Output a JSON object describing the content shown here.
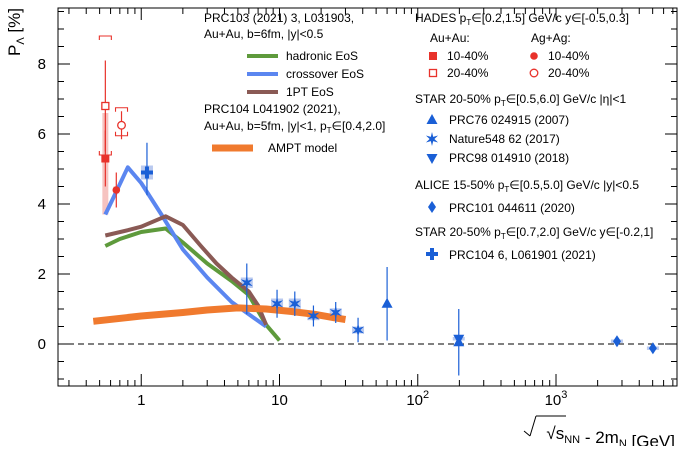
{
  "chart_data": {
    "type": "scatter",
    "xlabel": "√s_NN - 2m_N [GeV]",
    "ylabel": "P_Λ [%]",
    "x_scale": "log",
    "xlim": [
      0.25,
      7500
    ],
    "ylim": [
      -1.2,
      9.6
    ],
    "xticks": [
      {
        "value": 1,
        "label": "1"
      },
      {
        "value": 10,
        "label": "10"
      },
      {
        "value": 100,
        "label": "10²"
      },
      {
        "value": 1000,
        "label": "10³"
      }
    ],
    "yticks": [
      {
        "value": 0,
        "label": "0"
      },
      {
        "value": 2,
        "label": "2"
      },
      {
        "value": 4,
        "label": "4"
      },
      {
        "value": 6,
        "label": "6"
      },
      {
        "value": 8,
        "label": "8"
      }
    ],
    "zero_line": true,
    "model_block_1": {
      "header": "PRC103 (2021) 3, L031903,",
      "line2": "Au+Au, b=6fm, |y|<0.5",
      "entries": [
        "hadronic EoS",
        "crossover EoS",
        "1PT EoS"
      ]
    },
    "model_block_2": {
      "header": "PRC104 L041902 (2021),",
      "line2": "Au+Au, b=5fm, |y|<1, p_T∈[0.4,2.0]",
      "entries": [
        "AMPT model"
      ]
    },
    "hades_block": {
      "header": "HADES p_T∈[0.2,1.5] GeV/c y∈[-0.5,0.3]",
      "col1": "Au+Au:",
      "col2": "Ag+Ag:",
      "entries": [
        "10-40%",
        "20-40%",
        "10-40%",
        "20-40%"
      ]
    },
    "star1_block": {
      "header": "STAR 20-50% p_T∈[0.5,6.0] GeV/c |η|<1",
      "entries": [
        "PRC76 024915 (2007)",
        "Nature548 62 (2017)",
        "PRC98 014910 (2018)"
      ]
    },
    "alice_block": {
      "header": "ALICE 15-50% p_T∈[0.5,5.0] GeV/c |y|<0.5",
      "entries": [
        "PRC101 044611 (2020)"
      ]
    },
    "star2_block": {
      "header": "STAR 20-50% p_T∈[0.7,2.0] GeV/c y∈[-0.2,1]",
      "entries": [
        "PRC104 6, L061901 (2021)"
      ]
    },
    "colors": {
      "hades": "#e8322b",
      "star": "#1a5fd6",
      "star_sys": "#b9c9ef",
      "hadronic": "#5e9a3c",
      "crossover": "#5b86f0",
      "onept": "#8a5a55",
      "ampt": "#f07a2e"
    },
    "series": [
      {
        "name": "hadronic EoS",
        "kind": "line",
        "points": [
          [
            0.55,
            2.8
          ],
          [
            0.7,
            3.0
          ],
          [
            1.0,
            3.2
          ],
          [
            1.5,
            3.3
          ],
          [
            2.0,
            2.9
          ],
          [
            3.0,
            2.3
          ],
          [
            4.5,
            1.8
          ],
          [
            6.0,
            1.4
          ],
          [
            8.0,
            0.55
          ],
          [
            10.0,
            0.1
          ]
        ]
      },
      {
        "name": "crossover EoS",
        "kind": "line",
        "points": [
          [
            0.55,
            3.7
          ],
          [
            0.65,
            4.3
          ],
          [
            0.8,
            5.05
          ],
          [
            1.0,
            4.6
          ],
          [
            1.4,
            3.7
          ],
          [
            2.0,
            2.7
          ],
          [
            3.0,
            1.9
          ],
          [
            4.5,
            1.2
          ],
          [
            6.0,
            0.85
          ],
          [
            8.0,
            0.5
          ]
        ]
      },
      {
        "name": "1PT EoS",
        "kind": "line",
        "points": [
          [
            0.55,
            3.1
          ],
          [
            0.8,
            3.25
          ],
          [
            1.0,
            3.35
          ],
          [
            1.5,
            3.65
          ],
          [
            2.0,
            3.4
          ],
          [
            2.7,
            2.8
          ],
          [
            3.5,
            2.3
          ],
          [
            4.5,
            1.9
          ],
          [
            6.0,
            1.5
          ],
          [
            7.0,
            1.1
          ],
          [
            8.0,
            0.55
          ]
        ]
      },
      {
        "name": "AMPT model",
        "kind": "band",
        "points": [
          [
            0.45,
            0.65
          ],
          [
            1.0,
            0.8
          ],
          [
            2.0,
            0.9
          ],
          [
            3.0,
            0.97
          ],
          [
            5.0,
            1.03
          ],
          [
            8.0,
            1.0
          ],
          [
            12.0,
            0.93
          ],
          [
            18.0,
            0.85
          ],
          [
            25.0,
            0.75
          ],
          [
            30.0,
            0.7
          ]
        ]
      },
      {
        "name": "HADES Au+Au 10-40%",
        "kind": "point",
        "marker": "square-filled",
        "points": [
          {
            "x": 0.55,
            "y": 5.3,
            "err_lo": 0.8,
            "err_hi": 0.8,
            "sys_lo": 1.6,
            "sys_hi": 1.3
          }
        ]
      },
      {
        "name": "HADES Au+Au 20-40%",
        "kind": "point",
        "marker": "square-open",
        "points": [
          {
            "x": 0.55,
            "y": 6.8,
            "err_lo": 1.3,
            "err_hi": 1.3,
            "sys_lo": 1.4,
            "sys_hi": 2.0
          }
        ]
      },
      {
        "name": "HADES Ag+Ag 10-40%",
        "kind": "point",
        "marker": "circle-filled",
        "points": [
          {
            "x": 0.66,
            "y": 4.4,
            "err_lo": 0.5,
            "err_hi": 0.5,
            "sys_lo": 0.1,
            "sys_hi": 0.1
          }
        ]
      },
      {
        "name": "HADES Ag+Ag 20-40%",
        "kind": "point",
        "marker": "circle-open",
        "points": [
          {
            "x": 0.72,
            "y": 6.25,
            "err_lo": 0.4,
            "err_hi": 0.4,
            "sys_lo": 0.3,
            "sys_hi": 0.5
          }
        ]
      },
      {
        "name": "STAR PRC104 6, L061901 (2021)",
        "kind": "point",
        "marker": "cross",
        "points": [
          {
            "x": 1.1,
            "y": 4.9,
            "err_lo": 0.65,
            "err_hi": 0.85,
            "sys_lo": 0.2,
            "sys_hi": 0.2
          }
        ]
      },
      {
        "name": "STAR Nature548 62 (2017)",
        "kind": "point",
        "marker": "star",
        "points": [
          {
            "x": 5.8,
            "y": 1.75,
            "err_lo": 0.9,
            "err_hi": 0.55,
            "sys_lo": 0.15,
            "sys_hi": 0.15
          },
          {
            "x": 9.6,
            "y": 1.15,
            "err_lo": 0.4,
            "err_hi": 0.4,
            "sys_lo": 0.15,
            "sys_hi": 0.15
          },
          {
            "x": 12.9,
            "y": 1.15,
            "err_lo": 0.35,
            "err_hi": 0.35,
            "sys_lo": 0.15,
            "sys_hi": 0.15
          },
          {
            "x": 17.6,
            "y": 0.8,
            "err_lo": 0.3,
            "err_hi": 0.3,
            "sys_lo": 0.12,
            "sys_hi": 0.12
          },
          {
            "x": 25.5,
            "y": 0.9,
            "err_lo": 0.3,
            "err_hi": 0.3,
            "sys_lo": 0.12,
            "sys_hi": 0.12
          },
          {
            "x": 37.0,
            "y": 0.4,
            "err_lo": 0.35,
            "err_hi": 0.35,
            "sys_lo": 0.1,
            "sys_hi": 0.1
          }
        ]
      },
      {
        "name": "STAR PRC76 024915 (2007)",
        "kind": "point",
        "marker": "triangle-up",
        "points": [
          {
            "x": 60,
            "y": 1.15,
            "err_lo": 1.05,
            "err_hi": 1.05,
            "sys_lo": 0.0,
            "sys_hi": 0.0
          },
          {
            "x": 198,
            "y": 0.05,
            "err_lo": 0.95,
            "err_hi": 0.95,
            "sys_lo": 0.0,
            "sys_hi": 0.0
          }
        ]
      },
      {
        "name": "STAR PRC98 014910 (2018)",
        "kind": "point",
        "marker": "triangle-down",
        "points": [
          {
            "x": 198,
            "y": 0.15,
            "err_lo": 0.1,
            "err_hi": 0.1,
            "sys_lo": 0.05,
            "sys_hi": 0.05
          }
        ]
      },
      {
        "name": "ALICE PRC101 044611 (2020)",
        "kind": "point",
        "marker": "diamond",
        "points": [
          {
            "x": 2760,
            "y": 0.08,
            "err_lo": 0.12,
            "err_hi": 0.12,
            "sys_lo": 0.05,
            "sys_hi": 0.05
          },
          {
            "x": 5020,
            "y": -0.12,
            "err_lo": 0.12,
            "err_hi": 0.12,
            "sys_lo": 0.05,
            "sys_hi": 0.05
          }
        ]
      }
    ]
  }
}
